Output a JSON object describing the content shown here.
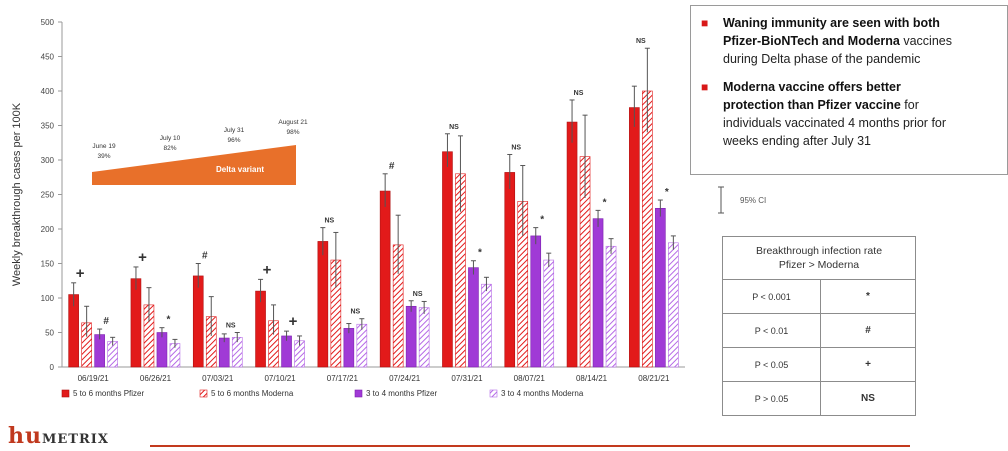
{
  "chart_data": {
    "type": "bar",
    "ylabel": "Weekly breakthrough cases per 100K",
    "ylim": [
      0,
      500
    ],
    "yticks": [
      0,
      50,
      100,
      150,
      200,
      250,
      300,
      350,
      400,
      450,
      500
    ],
    "categories": [
      "06/19/21",
      "06/26/21",
      "07/03/21",
      "07/10/21",
      "07/17/21",
      "07/24/21",
      "07/31/21",
      "08/07/21",
      "08/14/21",
      "08/21/21"
    ],
    "series": [
      {
        "name": "5 to 6 months Pfizer",
        "color": "#e21a1a",
        "pattern": "solid",
        "values": [
          105,
          128,
          132,
          110,
          182,
          255,
          312,
          282,
          355,
          376
        ],
        "ci": [
          [
            88,
            122
          ],
          [
            112,
            145
          ],
          [
            115,
            150
          ],
          [
            94,
            127
          ],
          [
            162,
            202
          ],
          [
            232,
            280
          ],
          [
            290,
            338
          ],
          [
            258,
            308
          ],
          [
            325,
            387
          ],
          [
            348,
            407
          ]
        ]
      },
      {
        "name": "5 to 6 months Moderna",
        "color": "#e21a1a",
        "pattern": "hatch",
        "values": [
          64,
          90,
          73,
          67,
          155,
          177,
          280,
          240,
          305,
          400
        ],
        "ci": [
          [
            44,
            88
          ],
          [
            65,
            115
          ],
          [
            45,
            102
          ],
          [
            47,
            90
          ],
          [
            115,
            195
          ],
          [
            135,
            220
          ],
          [
            225,
            335
          ],
          [
            190,
            292
          ],
          [
            245,
            365
          ],
          [
            340,
            462
          ]
        ]
      },
      {
        "name": "3 to 4 months Pfizer",
        "color": "#a03ad6",
        "pattern": "solid",
        "values": [
          47,
          50,
          42,
          45,
          56,
          88,
          144,
          190,
          215,
          230
        ],
        "ci": [
          [
            40,
            55
          ],
          [
            43,
            57
          ],
          [
            36,
            48
          ],
          [
            38,
            52
          ],
          [
            49,
            63
          ],
          [
            80,
            96
          ],
          [
            134,
            154
          ],
          [
            178,
            202
          ],
          [
            203,
            227
          ],
          [
            218,
            242
          ]
        ]
      },
      {
        "name": "3 to 4 months Moderna",
        "color": "#b569e6",
        "pattern": "hatch",
        "values": [
          37,
          34,
          43,
          38,
          62,
          86,
          120,
          155,
          175,
          180
        ],
        "ci": [
          [
            31,
            43
          ],
          [
            28,
            40
          ],
          [
            36,
            50
          ],
          [
            31,
            45
          ],
          [
            54,
            70
          ],
          [
            77,
            95
          ],
          [
            110,
            130
          ],
          [
            145,
            165
          ],
          [
            164,
            186
          ],
          [
            170,
            190
          ]
        ]
      }
    ],
    "significance": [
      "+ #",
      "+ *",
      "# NS",
      "+ +",
      "NS NS",
      "# NS",
      "NS *",
      "NS *",
      "NS *",
      "NS *"
    ],
    "annotations": {
      "arrow_label": "Delta variant",
      "delta_points": [
        {
          "date": "June 19",
          "pct": "39%"
        },
        {
          "date": "July 10",
          "pct": "82%"
        },
        {
          "date": "July 31",
          "pct": "96%"
        },
        {
          "date": "August 21",
          "pct": "98%"
        }
      ]
    },
    "legend_position": "bottom"
  },
  "notes": {
    "item1_bold": "Waning immunity are seen with both Pfizer-BioNTech and Moderna",
    "item1_line1": "Waning immunity are seen with both",
    "item1_line2_bold": "Pfizer-BioNTech and Moderna",
    "item1_line2_rest": " vaccines",
    "item1_line3": "during Delta phase of the  pandemic",
    "item2_line1": "Moderna vaccine offers better",
    "item2_line2_bold": "protection than Pfizer vaccine",
    "item2_line2_rest": " for",
    "item2_line3": "individuals vaccinated 4 months prior for",
    "item2_line4": "weeks ending after July 31"
  },
  "ci_legend": {
    "label": "95% CI"
  },
  "table": {
    "header_line1": "Breakthrough infection rate",
    "header_line2": "Pfizer > Moderna",
    "rows": [
      {
        "p": "P < 0.001",
        "symbol": "*"
      },
      {
        "p": "P < 0.01",
        "symbol": "#"
      },
      {
        "p": "P < 0.05",
        "symbol": "+"
      },
      {
        "p": "P > 0.05",
        "symbol": "NS"
      }
    ]
  },
  "logo": {
    "part1": "hu",
    "part2": "METRIX"
  },
  "colors": {
    "red": "#e21a1a",
    "purple": "#a03ad6",
    "light_purple": "#b569e6",
    "orange": "#e8702a",
    "logo_red": "#c0391e"
  }
}
